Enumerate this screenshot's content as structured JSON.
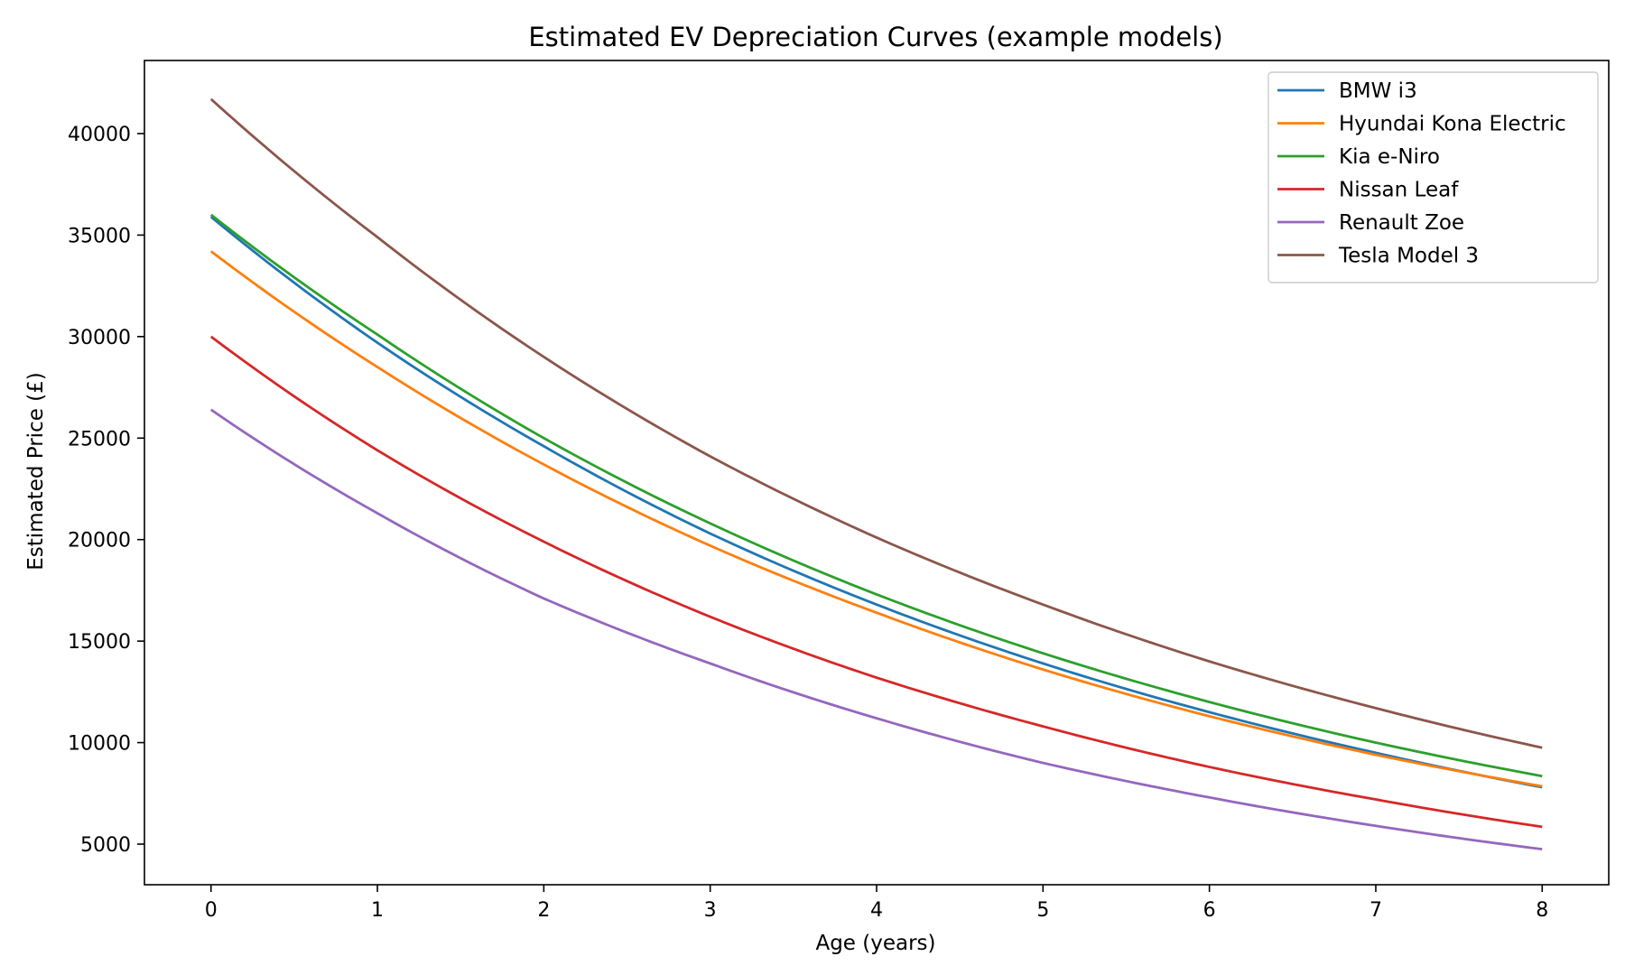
{
  "chart_data": {
    "type": "line",
    "title": "Estimated EV Depreciation Curves (example models)",
    "xlabel": "Age (years)",
    "ylabel": "Estimated Price (£)",
    "xlim": [
      -0.4,
      8.4
    ],
    "ylim": [
      3000,
      43600
    ],
    "xticks": [
      0,
      1,
      2,
      3,
      4,
      5,
      6,
      7,
      8
    ],
    "yticks": [
      5000,
      10000,
      15000,
      20000,
      25000,
      30000,
      35000,
      40000
    ],
    "grid": false,
    "legend_position": "upper-right",
    "series": [
      {
        "name": "BMW i3",
        "color": "#1f77b4",
        "x": [
          0,
          1,
          2,
          3,
          4,
          5,
          6,
          7,
          8
        ],
        "values": [
          35900,
          29700,
          24600,
          20300,
          16800,
          13900,
          11500,
          9500,
          7800
        ]
      },
      {
        "name": "Hyundai Kona Electric",
        "color": "#ff7f0e",
        "x": [
          0,
          1,
          2,
          3,
          4,
          5,
          6,
          7,
          8
        ],
        "values": [
          34200,
          28500,
          23700,
          19700,
          16400,
          13600,
          11300,
          9400,
          7850
        ]
      },
      {
        "name": "Kia e-Niro",
        "color": "#2ca02c",
        "x": [
          0,
          1,
          2,
          3,
          4,
          5,
          6,
          7,
          8
        ],
        "values": [
          36000,
          30100,
          25000,
          20800,
          17300,
          14400,
          12000,
          10000,
          8350
        ]
      },
      {
        "name": "Nissan Leaf",
        "color": "#d62728",
        "x": [
          0,
          1,
          2,
          3,
          4,
          5,
          6,
          7,
          8
        ],
        "values": [
          30000,
          24400,
          19900,
          16200,
          13200,
          10800,
          8800,
          7200,
          5850
        ]
      },
      {
        "name": "Renault Zoe",
        "color": "#9467bd",
        "x": [
          0,
          1,
          2,
          3,
          4,
          5,
          6,
          7,
          8
        ],
        "values": [
          26400,
          21300,
          17100,
          13900,
          11200,
          9000,
          7300,
          5900,
          4750
        ]
      },
      {
        "name": "Tesla Model 3",
        "color": "#8c564b",
        "x": [
          0,
          1,
          2,
          3,
          4,
          5,
          6,
          7,
          8
        ],
        "values": [
          41700,
          34900,
          29000,
          24100,
          20100,
          16800,
          14000,
          11700,
          9750
        ]
      }
    ]
  }
}
